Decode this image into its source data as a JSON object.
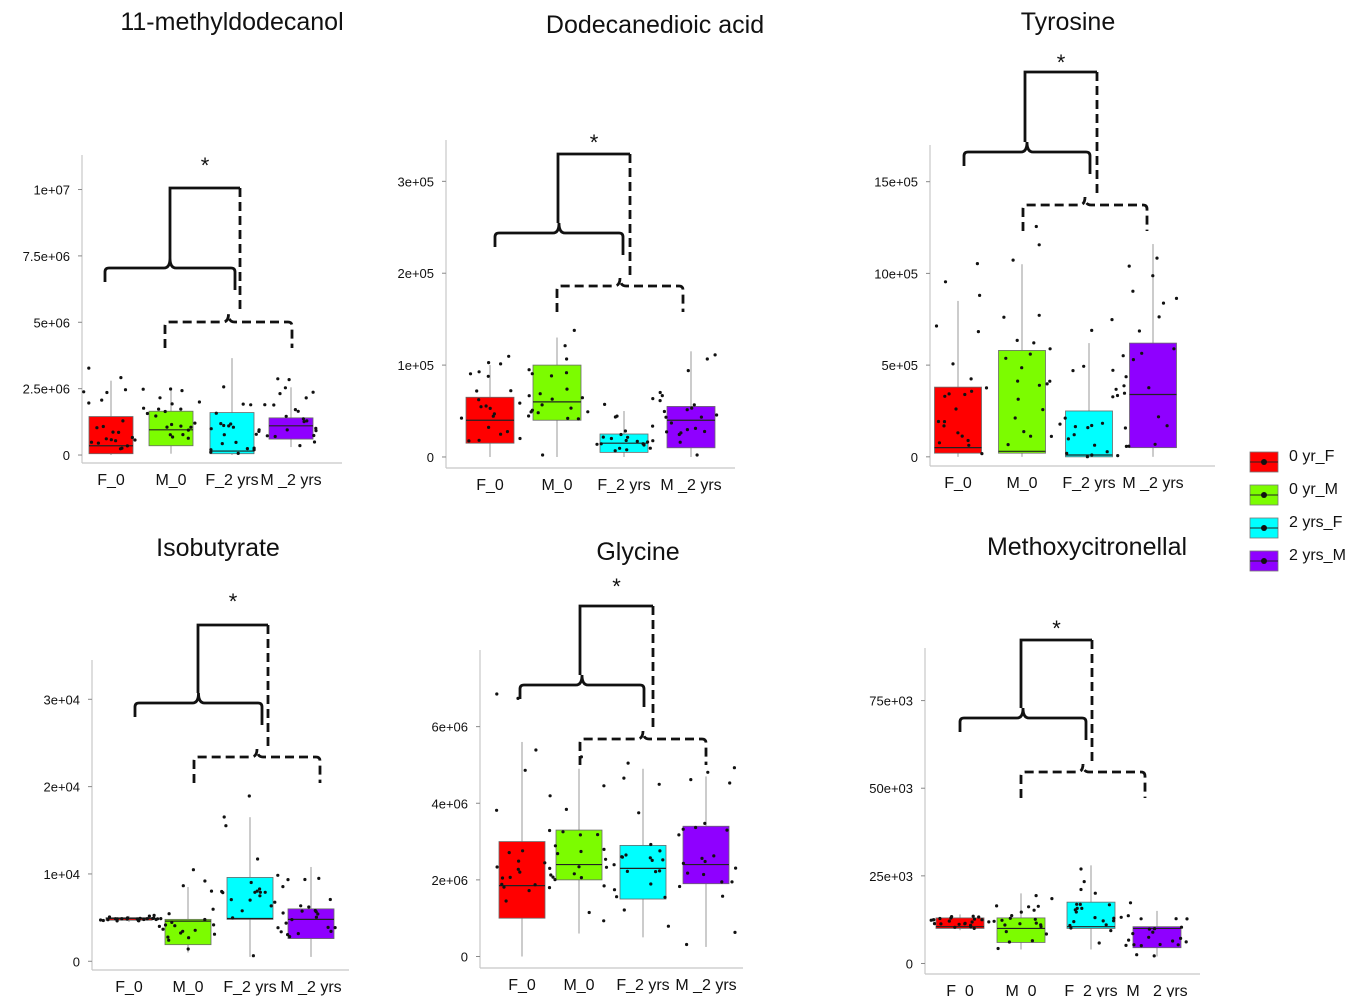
{
  "chart_data": [
    {
      "type": "box",
      "title": "11-methyldodecanol",
      "xlabel": "",
      "ylabel": "",
      "categories": [
        "F_0",
        "M_0",
        "F_2 yrs",
        "M _2 yrs"
      ],
      "yticks": [
        {
          "value": 0,
          "label": "0"
        },
        {
          "value": 2500000,
          "label": "2.5e+06"
        },
        {
          "value": 5000000,
          "label": "5e+06"
        },
        {
          "value": 7500000,
          "label": "7.5e+06"
        },
        {
          "value": 10000000,
          "label": "1e+07"
        }
      ],
      "ylim": [
        -300000,
        11300000
      ],
      "series": [
        {
          "name": "0 yr_F",
          "category": "F_0",
          "q1": 50000,
          "median": 350000,
          "q3": 1450000,
          "whisker_low": 0,
          "whisker_high": 2800000
        },
        {
          "name": "0 yr_M",
          "category": "M_0",
          "q1": 350000,
          "median": 950000,
          "q3": 1650000,
          "whisker_low": 50000,
          "whisker_high": 2500000
        },
        {
          "name": "2 yrs_F",
          "category": "F_2 yrs",
          "q1": 50000,
          "median": 150000,
          "q3": 1600000,
          "whisker_low": 0,
          "whisker_high": 3650000
        },
        {
          "name": "2 yrs_M",
          "category": "M _2 yrs",
          "q1": 600000,
          "median": 1100000,
          "q3": 1400000,
          "whisker_low": 300000,
          "whisker_high": 2550000
        }
      ],
      "significance": "*"
    },
    {
      "type": "box",
      "title": "Dodecanedioic acid",
      "xlabel": "",
      "ylabel": "",
      "categories": [
        "F_0",
        "M_0",
        "F_2 yrs",
        "M _2 yrs"
      ],
      "yticks": [
        {
          "value": 0,
          "label": "0"
        },
        {
          "value": 100000,
          "label": "1e+05"
        },
        {
          "value": 200000,
          "label": "2e+05"
        },
        {
          "value": 300000,
          "label": "3e+05"
        }
      ],
      "ylim": [
        -12000,
        345000
      ],
      "series": [
        {
          "name": "0 yr_F",
          "category": "F_0",
          "q1": 15000,
          "median": 40000,
          "q3": 65000,
          "whisker_low": 0,
          "whisker_high": 100000
        },
        {
          "name": "0 yr_M",
          "category": "M_0",
          "q1": 40000,
          "median": 60000,
          "q3": 100000,
          "whisker_low": 0,
          "whisker_high": 130000
        },
        {
          "name": "2 yrs_F",
          "category": "F_2 yrs",
          "q1": 5000,
          "median": 15000,
          "q3": 25000,
          "whisker_low": 0,
          "whisker_high": 50000
        },
        {
          "name": "2 yrs_M",
          "category": "M _2 yrs",
          "q1": 10000,
          "median": 40000,
          "q3": 55000,
          "whisker_low": 0,
          "whisker_high": 115000
        }
      ],
      "significance": "*"
    },
    {
      "type": "box",
      "title": "Tyrosine",
      "xlabel": "",
      "ylabel": "",
      "categories": [
        "F_0",
        "M_0",
        "F_2 yrs",
        "M _2 yrs"
      ],
      "yticks": [
        {
          "value": 0,
          "label": "0"
        },
        {
          "value": 500000,
          "label": "5e+05"
        },
        {
          "value": 1000000,
          "label": "10e+05"
        },
        {
          "value": 1500000,
          "label": "15e+05"
        }
      ],
      "ylim": [
        -50000,
        1700000
      ],
      "series": [
        {
          "name": "0 yr_F",
          "category": "F_0",
          "q1": 20000,
          "median": 50000,
          "q3": 380000,
          "whisker_low": 0,
          "whisker_high": 850000
        },
        {
          "name": "0 yr_M",
          "category": "M_0",
          "q1": 20000,
          "median": 30000,
          "q3": 580000,
          "whisker_low": 0,
          "whisker_high": 1050000
        },
        {
          "name": "2 yrs_F",
          "category": "F_2 yrs",
          "q1": 0,
          "median": 10000,
          "q3": 250000,
          "whisker_low": 0,
          "whisker_high": 620000
        },
        {
          "name": "2 yrs_M",
          "category": "M _2 yrs",
          "q1": 50000,
          "median": 340000,
          "q3": 620000,
          "whisker_low": 0,
          "whisker_high": 1160000
        }
      ],
      "significance": "*"
    },
    {
      "type": "box",
      "title": "Isobutyrate",
      "xlabel": "",
      "ylabel": "",
      "categories": [
        "F_0",
        "M_0",
        "F_2 yrs",
        "M _2 yrs"
      ],
      "yticks": [
        {
          "value": 0,
          "label": "0"
        },
        {
          "value": 10000,
          "label": "1e+04"
        },
        {
          "value": 20000,
          "label": "2e+04"
        },
        {
          "value": 30000,
          "label": "3e+04"
        }
      ],
      "ylim": [
        -1000,
        34500
      ],
      "series": [
        {
          "name": "0 yr_F",
          "category": "F_0",
          "q1": 4700,
          "median": 4900,
          "q3": 5000,
          "whisker_low": 4500,
          "whisker_high": 5200
        },
        {
          "name": "0 yr_M",
          "category": "M_0",
          "q1": 1900,
          "median": 4600,
          "q3": 4800,
          "whisker_low": 1000,
          "whisker_high": 8500
        },
        {
          "name": "2 yrs_F",
          "category": "F_2 yrs",
          "q1": 4800,
          "median": 4900,
          "q3": 9600,
          "whisker_low": 500,
          "whisker_high": 16500
        },
        {
          "name": "2 yrs_M",
          "category": "M _2 yrs",
          "q1": 2600,
          "median": 4800,
          "q3": 6000,
          "whisker_low": 500,
          "whisker_high": 10800
        }
      ],
      "significance": "*"
    },
    {
      "type": "box",
      "title": "Glycine",
      "xlabel": "",
      "ylabel": "",
      "categories": [
        "F_0",
        "M_0",
        "F_2 yrs",
        "M _2 yrs"
      ],
      "yticks": [
        {
          "value": 0,
          "label": "0"
        },
        {
          "value": 2000000,
          "label": "2e+06"
        },
        {
          "value": 4000000,
          "label": "4e+06"
        },
        {
          "value": 6000000,
          "label": "6e+06"
        }
      ],
      "ylim": [
        -300000,
        8000000
      ],
      "series": [
        {
          "name": "0 yr_F",
          "category": "F_0",
          "q1": 1000000,
          "median": 1850000,
          "q3": 3000000,
          "whisker_low": 0,
          "whisker_high": 5600000
        },
        {
          "name": "0 yr_M",
          "category": "M_0",
          "q1": 2000000,
          "median": 2400000,
          "q3": 3300000,
          "whisker_low": 600000,
          "whisker_high": 4900000
        },
        {
          "name": "2 yrs_F",
          "category": "F_2 yrs",
          "q1": 1500000,
          "median": 2300000,
          "q3": 2900000,
          "whisker_low": 500000,
          "whisker_high": 4900000
        },
        {
          "name": "2 yrs_M",
          "category": "M _2 yrs",
          "q1": 1900000,
          "median": 2400000,
          "q3": 3400000,
          "whisker_low": 250000,
          "whisker_high": 4700000
        }
      ],
      "significance": "*"
    },
    {
      "type": "box",
      "title": "Methoxycitronellal",
      "xlabel": "",
      "ylabel": "",
      "categories": [
        "F_0",
        "M_0",
        "F_2 yrs",
        "M _2 yrs"
      ],
      "yticks": [
        {
          "value": 0,
          "label": "0"
        },
        {
          "value": 25000,
          "label": "25e+03"
        },
        {
          "value": 50000,
          "label": "50e+03"
        },
        {
          "value": 75000,
          "label": "75e+03"
        }
      ],
      "ylim": [
        -3000,
        90000
      ],
      "series": [
        {
          "name": "0 yr_F",
          "category": "F_0",
          "q1": 10000,
          "median": 10500,
          "q3": 13000,
          "whisker_low": 9500,
          "whisker_high": 14000
        },
        {
          "name": "0 yr_M",
          "category": "M_0",
          "q1": 6000,
          "median": 10000,
          "q3": 13000,
          "whisker_low": 4000,
          "whisker_high": 20000
        },
        {
          "name": "2 yrs_F",
          "category": "F_2 yrs",
          "q1": 10000,
          "median": 10500,
          "q3": 17500,
          "whisker_low": 4000,
          "whisker_high": 28000
        },
        {
          "name": "2 yrs_M",
          "category": "M _2 yrs",
          "q1": 4500,
          "median": 10000,
          "q3": 10500,
          "whisker_low": 2000,
          "whisker_high": 15000
        }
      ],
      "significance": "*"
    }
  ],
  "legend": {
    "position": "right",
    "items": [
      {
        "label": "0 yr_F",
        "color": "#ff0000"
      },
      {
        "label": "0 yr_M",
        "color": "#7cfc00"
      },
      {
        "label": "2 yrs_F",
        "color": "#00ffff"
      },
      {
        "label": "2 yrs_M",
        "color": "#8f00ff"
      }
    ]
  }
}
